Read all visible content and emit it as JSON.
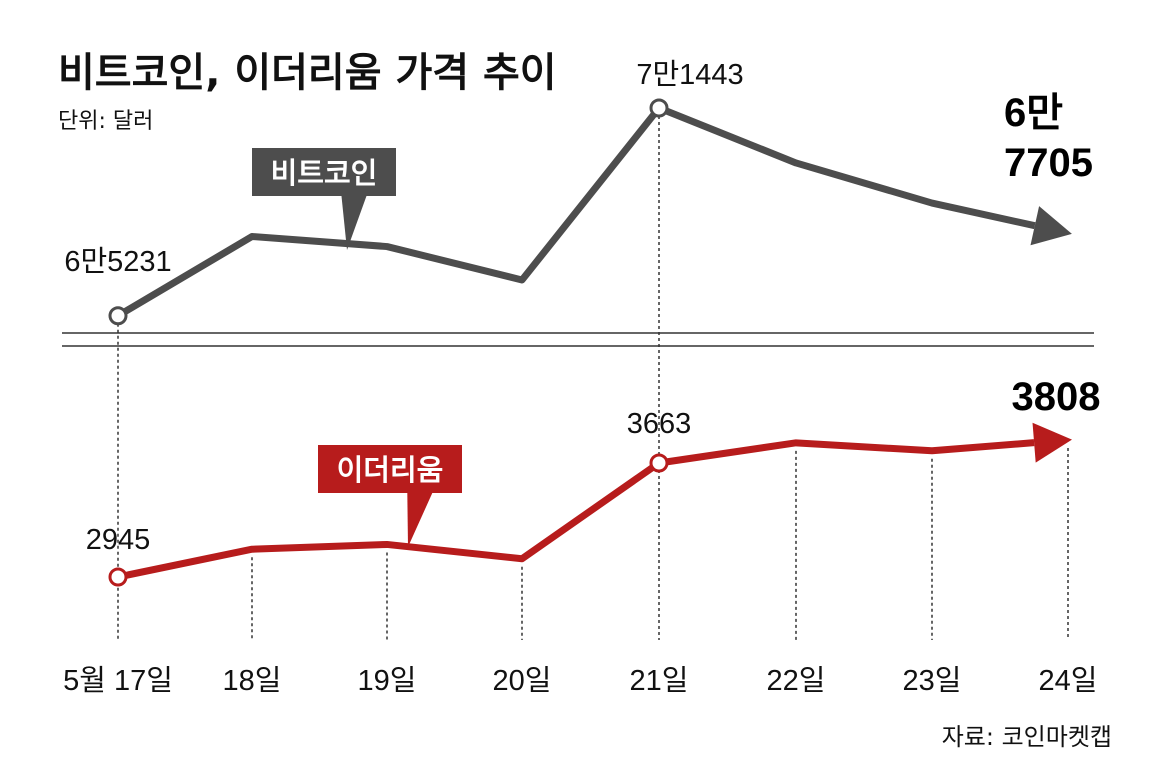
{
  "title": "비트코인, 이더리움 가격 추이",
  "unit": "단위: 달러",
  "source": "자료: 코인마켓캡",
  "colors": {
    "bitcoin": "#4d4d4d",
    "ethereum": "#b71c1c"
  },
  "chart_data": {
    "type": "line",
    "categories": [
      "5월 17일",
      "18일",
      "19일",
      "20일",
      "21일",
      "22일",
      "23일",
      "24일"
    ],
    "series": [
      {
        "name": "비트코인",
        "values": [
          65231,
          67600,
          67300,
          66300,
          71443,
          69800,
          68600,
          67705
        ],
        "labels": [
          {
            "index": 0,
            "text": "6만5231"
          },
          {
            "index": 4,
            "text": "7만1443"
          },
          {
            "index": 7,
            "text": "6만\n7705"
          }
        ]
      },
      {
        "name": "이더리움",
        "values": [
          2945,
          3120,
          3150,
          3060,
          3663,
          3790,
          3740,
          3808
        ],
        "labels": [
          {
            "index": 0,
            "text": "2945"
          },
          {
            "index": 4,
            "text": "3663"
          },
          {
            "index": 7,
            "text": "3808"
          }
        ]
      }
    ]
  }
}
